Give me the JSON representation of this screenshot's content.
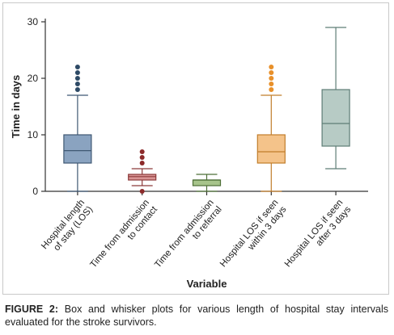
{
  "chart_data": {
    "type": "box",
    "ylabel": "Time in days",
    "xlabel": "Variable",
    "ylim": [
      0,
      30
    ],
    "yticks": [
      0,
      10,
      20,
      30
    ],
    "grid": false,
    "boxes": [
      {
        "label_lines": [
          "Hospital length",
          "of stay (LOS)"
        ],
        "min": 0,
        "q1": 5,
        "median": 7.2,
        "q3": 10,
        "max": 17,
        "outliers": [
          18,
          19,
          20,
          21,
          22
        ],
        "fill": "#8aa3c0",
        "stroke": "#3f5873",
        "outlier_color": "#2e4a66"
      },
      {
        "label_lines": [
          "Time from admission",
          "to contact"
        ],
        "min": 1,
        "q1": 2,
        "median": 2.6,
        "q3": 3,
        "max": 4,
        "outliers": [
          0,
          5,
          6,
          7
        ],
        "fill": "#d99494",
        "stroke": "#8c3a3a",
        "outlier_color": "#8c2a2a"
      },
      {
        "label_lines": [
          "Time from admission",
          "to referral"
        ],
        "min": 0,
        "q1": 1,
        "median": 2,
        "q3": 2,
        "max": 3,
        "outliers": [],
        "fill": "#a7c48b",
        "stroke": "#4e6f37",
        "outlier_color": "#4e6f37"
      },
      {
        "label_lines": [
          "Hospital LOS if seen",
          "within 3 days"
        ],
        "min": 0,
        "q1": 5,
        "median": 7,
        "q3": 10,
        "max": 17,
        "outliers": [
          18,
          19,
          20,
          21,
          22
        ],
        "fill": "#f4c38a",
        "stroke": "#c17d2b",
        "outlier_color": "#e8902a"
      },
      {
        "label_lines": [
          "Hospital LOS if seen",
          "after 3 days"
        ],
        "min": 4,
        "q1": 8,
        "median": 12,
        "q3": 18,
        "max": 29,
        "outliers": [],
        "fill": "#b7cbc5",
        "stroke": "#5e7d76",
        "outlier_color": "#5e7d76"
      }
    ]
  },
  "caption": {
    "label": "FIGURE 2:",
    "text": "Box and whisker plots for various length of hospital stay intervals evaluated for the stroke survivors."
  }
}
